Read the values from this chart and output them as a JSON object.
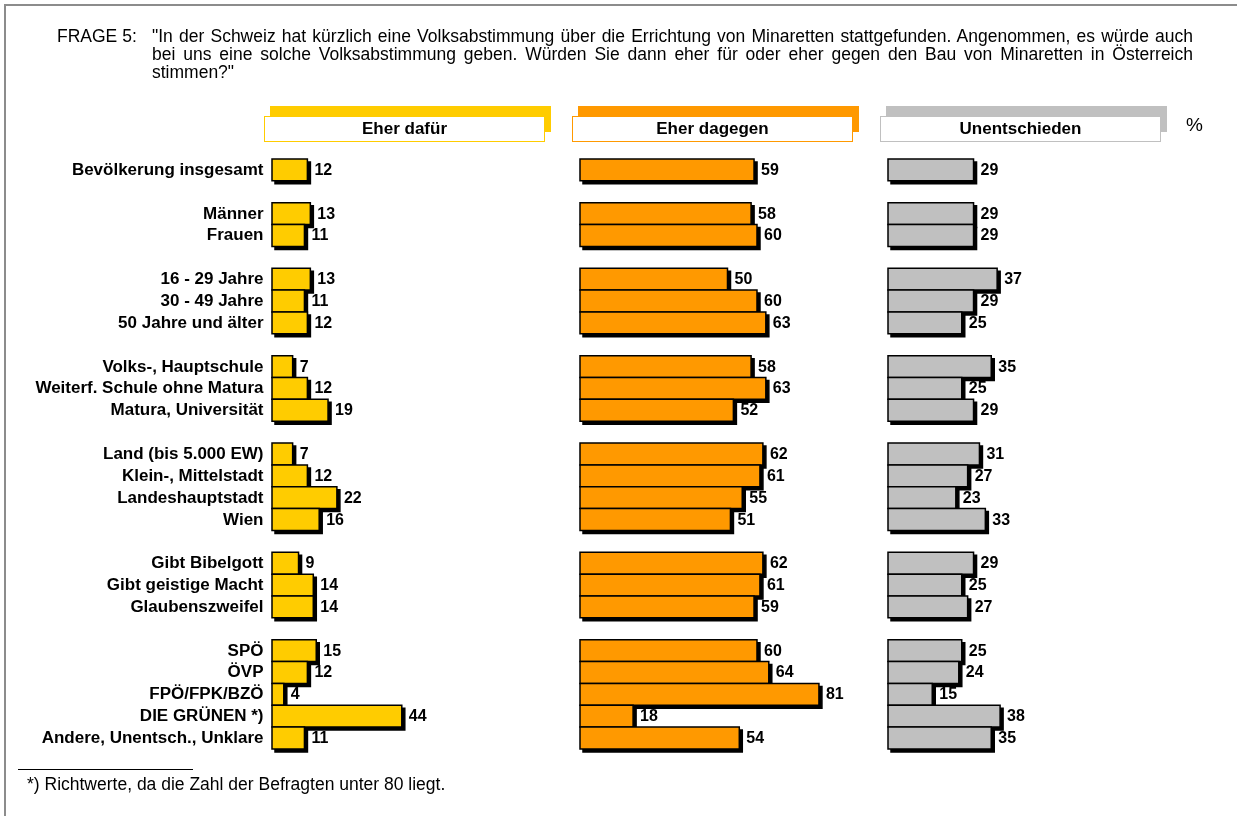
{
  "chart_data": [
    {
      "type": "bar",
      "orientation": "horizontal",
      "title": "Eher dafür",
      "color": "#ffcc00",
      "data_labels": true,
      "tick_labels": "y",
      "categories": [
        "Bevölkerung insgesamt",
        null,
        "Männer",
        "Frauen",
        null,
        "16 - 29 Jahre",
        "30 - 49 Jahre",
        "50 Jahre und älter",
        null,
        "Volks-, Hauptschule",
        "Weiterf. Schule ohne Matura",
        "Matura, Universität",
        null,
        "Land (bis 5.000 EW)",
        "Klein-, Mittelstadt",
        "Landeshauptstadt",
        "Wien",
        null,
        "Gibt Bibelgott",
        "Gibt geistige Macht",
        "Glaubenszweifel",
        null,
        "SPÖ",
        "ÖVP",
        "FPÖ/FPK/BZÖ",
        "DIE GRÜNEN *)",
        "Andere, Unentsch., Unklare"
      ],
      "values": [
        12,
        null,
        13,
        11,
        null,
        13,
        11,
        12,
        null,
        7,
        12,
        19,
        null,
        7,
        12,
        22,
        16,
        null,
        9,
        14,
        14,
        null,
        15,
        12,
        4,
        44,
        11
      ],
      "annotations": [
        "FRAGE 5:",
        "\"In der Schweiz hat kürzlich eine Volksabstimmung über die Errichtung von Minaretten stattgefunden. Angenommen, es würde auch bei uns eine solche Volksabstimmung geben. Würden Sie dann eher für oder eher gegen den Bau von Minaretten in Österreich stimmen?\"",
        "*) Richtwerte, da die Zahl der Befragten unter 80 liegt."
      ]
    },
    {
      "type": "bar",
      "orientation": "horizontal",
      "title": "Eher dagegen",
      "color": "#ff9900",
      "data_labels": true,
      "categories": [
        null,
        null,
        null,
        null,
        null,
        null,
        null,
        null,
        null,
        null,
        null,
        null,
        null,
        null,
        null,
        null,
        null,
        null,
        null,
        null,
        null,
        null,
        null,
        null,
        null,
        null,
        null
      ],
      "values": [
        59,
        null,
        58,
        60,
        null,
        50,
        60,
        63,
        null,
        58,
        63,
        52,
        null,
        62,
        61,
        55,
        51,
        null,
        62,
        61,
        59,
        null,
        60,
        64,
        81,
        18,
        54
      ]
    },
    {
      "type": "bar",
      "orientation": "horizontal",
      "title": "Unentschieden",
      "color": "#c0c0c0",
      "data_labels": true,
      "categories": [
        null,
        null,
        null,
        null,
        null,
        null,
        null,
        null,
        null,
        null,
        null,
        null,
        null,
        null,
        null,
        null,
        null,
        null,
        null,
        null,
        null,
        null,
        null,
        null,
        null,
        null,
        null
      ],
      "values": [
        29,
        null,
        29,
        29,
        null,
        37,
        29,
        25,
        null,
        35,
        25,
        29,
        null,
        31,
        27,
        23,
        33,
        null,
        29,
        25,
        27,
        null,
        25,
        24,
        15,
        38,
        35
      ],
      "annotations": [
        "%"
      ]
    }
  ]
}
